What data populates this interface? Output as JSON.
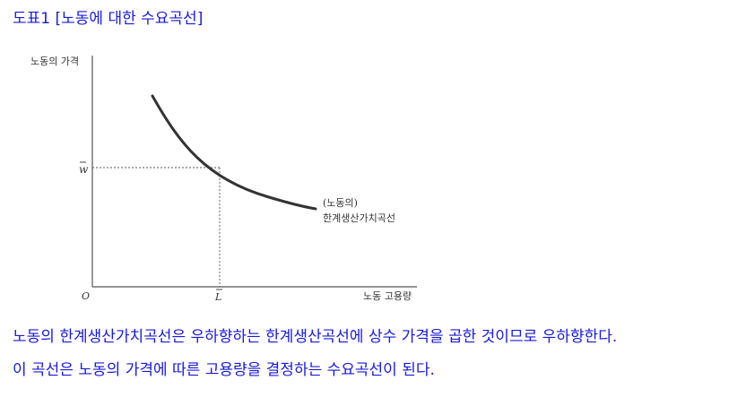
{
  "caption": "도표1 [노동에 대한 수요곡선]",
  "figure": {
    "y_axis_label": "노동의 가격",
    "x_axis_label": "노동 고용량",
    "origin_label": "O",
    "wage_label": "w",
    "labor_label": "L",
    "curve_label_line1": "(노동의)",
    "curve_label_line2": "한계생산가치곡선"
  },
  "text": {
    "line1": "노동의 한계생산가치곡선은 우하향하는 한계생산곡선에 상수 가격을 곱한 것이므로 우하향한다.",
    "line2": "이 곡선은 노동의 가격에 따른 고용량을 결정하는 수요곡선이 된다."
  },
  "colors": {
    "text_blue": "#1a1ad6",
    "curve": "#333333",
    "axis": "#555555"
  }
}
